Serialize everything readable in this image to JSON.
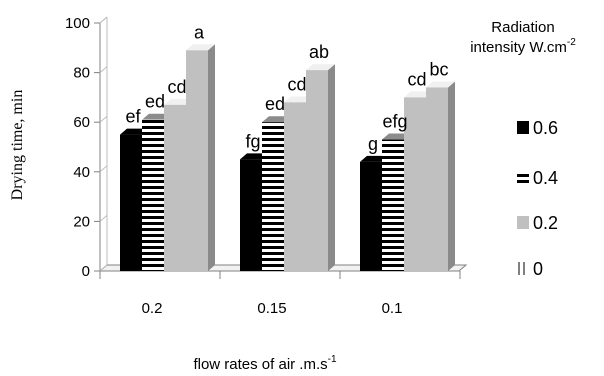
{
  "chart_data": {
    "type": "bar",
    "ylabel": "Drying time, min",
    "xlabel": "flow rates of air .m.s",
    "xlabel_sup": "-1",
    "ylim": [
      0,
      100
    ],
    "yticks": [
      "0",
      "20",
      "40",
      "60",
      "80",
      "100"
    ],
    "categories": [
      "0.2",
      "0.15",
      "0.1"
    ],
    "legend": {
      "title_line1": "Radiation",
      "title_line2": "intensity W.cm",
      "title_sup": "-2",
      "placement": "right"
    },
    "series": [
      {
        "name": "0.6",
        "values": [
          55,
          45,
          44
        ],
        "labels": [
          "ef",
          "fg",
          "g"
        ],
        "style": "solid",
        "color": "#000000"
      },
      {
        "name": "0.4",
        "values": [
          61,
          60,
          53
        ],
        "labels": [
          "ed",
          "ed",
          "efg"
        ],
        "style": "stripes",
        "color": "#000000"
      },
      {
        "name": "0.2",
        "values": [
          67,
          68,
          70
        ],
        "labels": [
          "cd",
          "cd",
          "cd"
        ],
        "style": "solid",
        "color": "#c0c0c0"
      },
      {
        "name": "0",
        "values": [
          89,
          81,
          74
        ],
        "labels": [
          "a",
          "ab",
          "bc"
        ],
        "style": "solid",
        "color": "#c0c0c0"
      }
    ],
    "grid": false
  }
}
